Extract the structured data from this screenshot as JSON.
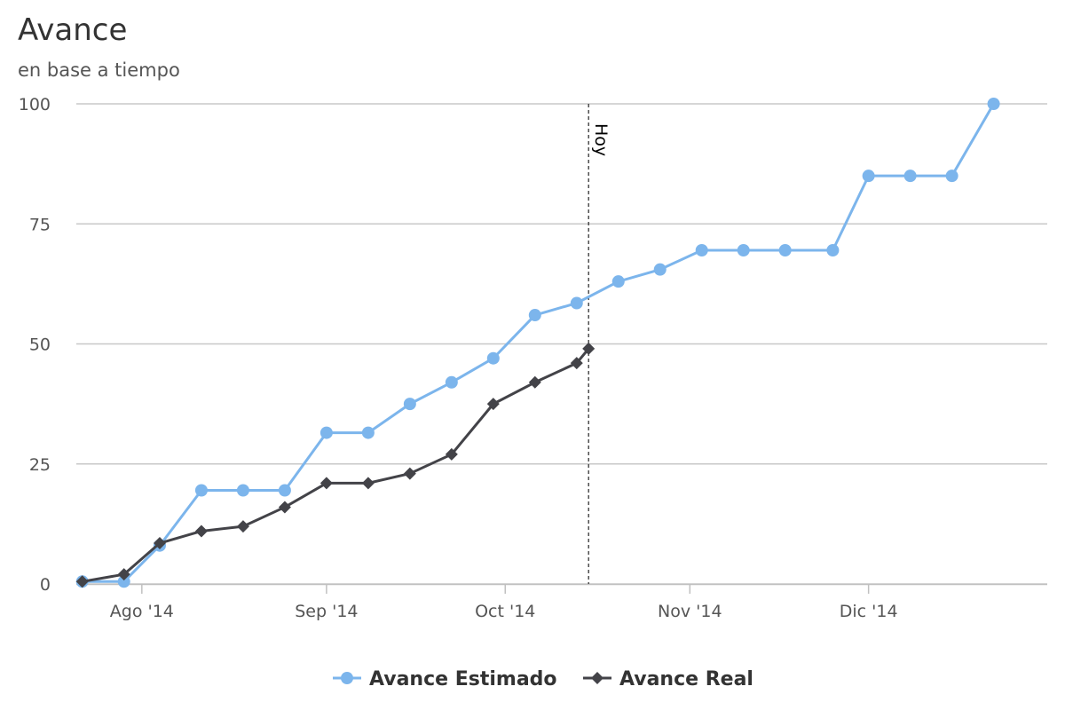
{
  "chart_data": {
    "type": "line",
    "title": "Avance",
    "subtitle": "en base a tiempo",
    "xlabel": "",
    "ylabel": "",
    "x_ticks": [
      "Ago '14",
      "Sep '14",
      "Oct '14",
      "Nov '14",
      "Dic '14"
    ],
    "x_tick_dates": [
      "2014-08-01",
      "2014-09-01",
      "2014-10-01",
      "2014-11-01",
      "2014-12-01"
    ],
    "xlim": [
      "2014-07-21",
      "2014-12-31"
    ],
    "y_ticks": [
      "0",
      "25",
      "50",
      "75",
      "100"
    ],
    "ylim": [
      0,
      100
    ],
    "grid": "horizontal",
    "legend_position": "bottom-center",
    "plot_line": {
      "label": "Hoy",
      "x": "2014-10-15"
    },
    "series": [
      {
        "name": "Avance Estimado",
        "color": "#7cb5ec",
        "marker": "circle",
        "x": [
          "2014-07-22",
          "2014-07-29",
          "2014-08-04",
          "2014-08-11",
          "2014-08-18",
          "2014-08-25",
          "2014-09-01",
          "2014-09-08",
          "2014-09-15",
          "2014-09-22",
          "2014-09-29",
          "2014-10-06",
          "2014-10-13",
          "2014-10-20",
          "2014-10-27",
          "2014-11-03",
          "2014-11-10",
          "2014-11-17",
          "2014-11-25",
          "2014-12-01",
          "2014-12-08",
          "2014-12-15",
          "2014-12-22"
        ],
        "values": [
          0.5,
          0.5,
          8,
          19.5,
          19.5,
          19.5,
          31.5,
          31.5,
          37.5,
          42,
          47,
          56,
          58.5,
          63,
          65.5,
          69.5,
          69.5,
          69.5,
          69.5,
          85,
          85,
          85,
          100
        ]
      },
      {
        "name": "Avance Real",
        "color": "#434348",
        "marker": "diamond",
        "x": [
          "2014-07-22",
          "2014-07-29",
          "2014-08-04",
          "2014-08-11",
          "2014-08-18",
          "2014-08-25",
          "2014-09-01",
          "2014-09-08",
          "2014-09-15",
          "2014-09-22",
          "2014-09-29",
          "2014-10-06",
          "2014-10-13",
          "2014-10-15"
        ],
        "values": [
          0.5,
          2,
          8.5,
          11,
          12,
          16,
          21,
          21,
          23,
          27,
          37.5,
          42,
          46,
          49
        ]
      }
    ]
  }
}
